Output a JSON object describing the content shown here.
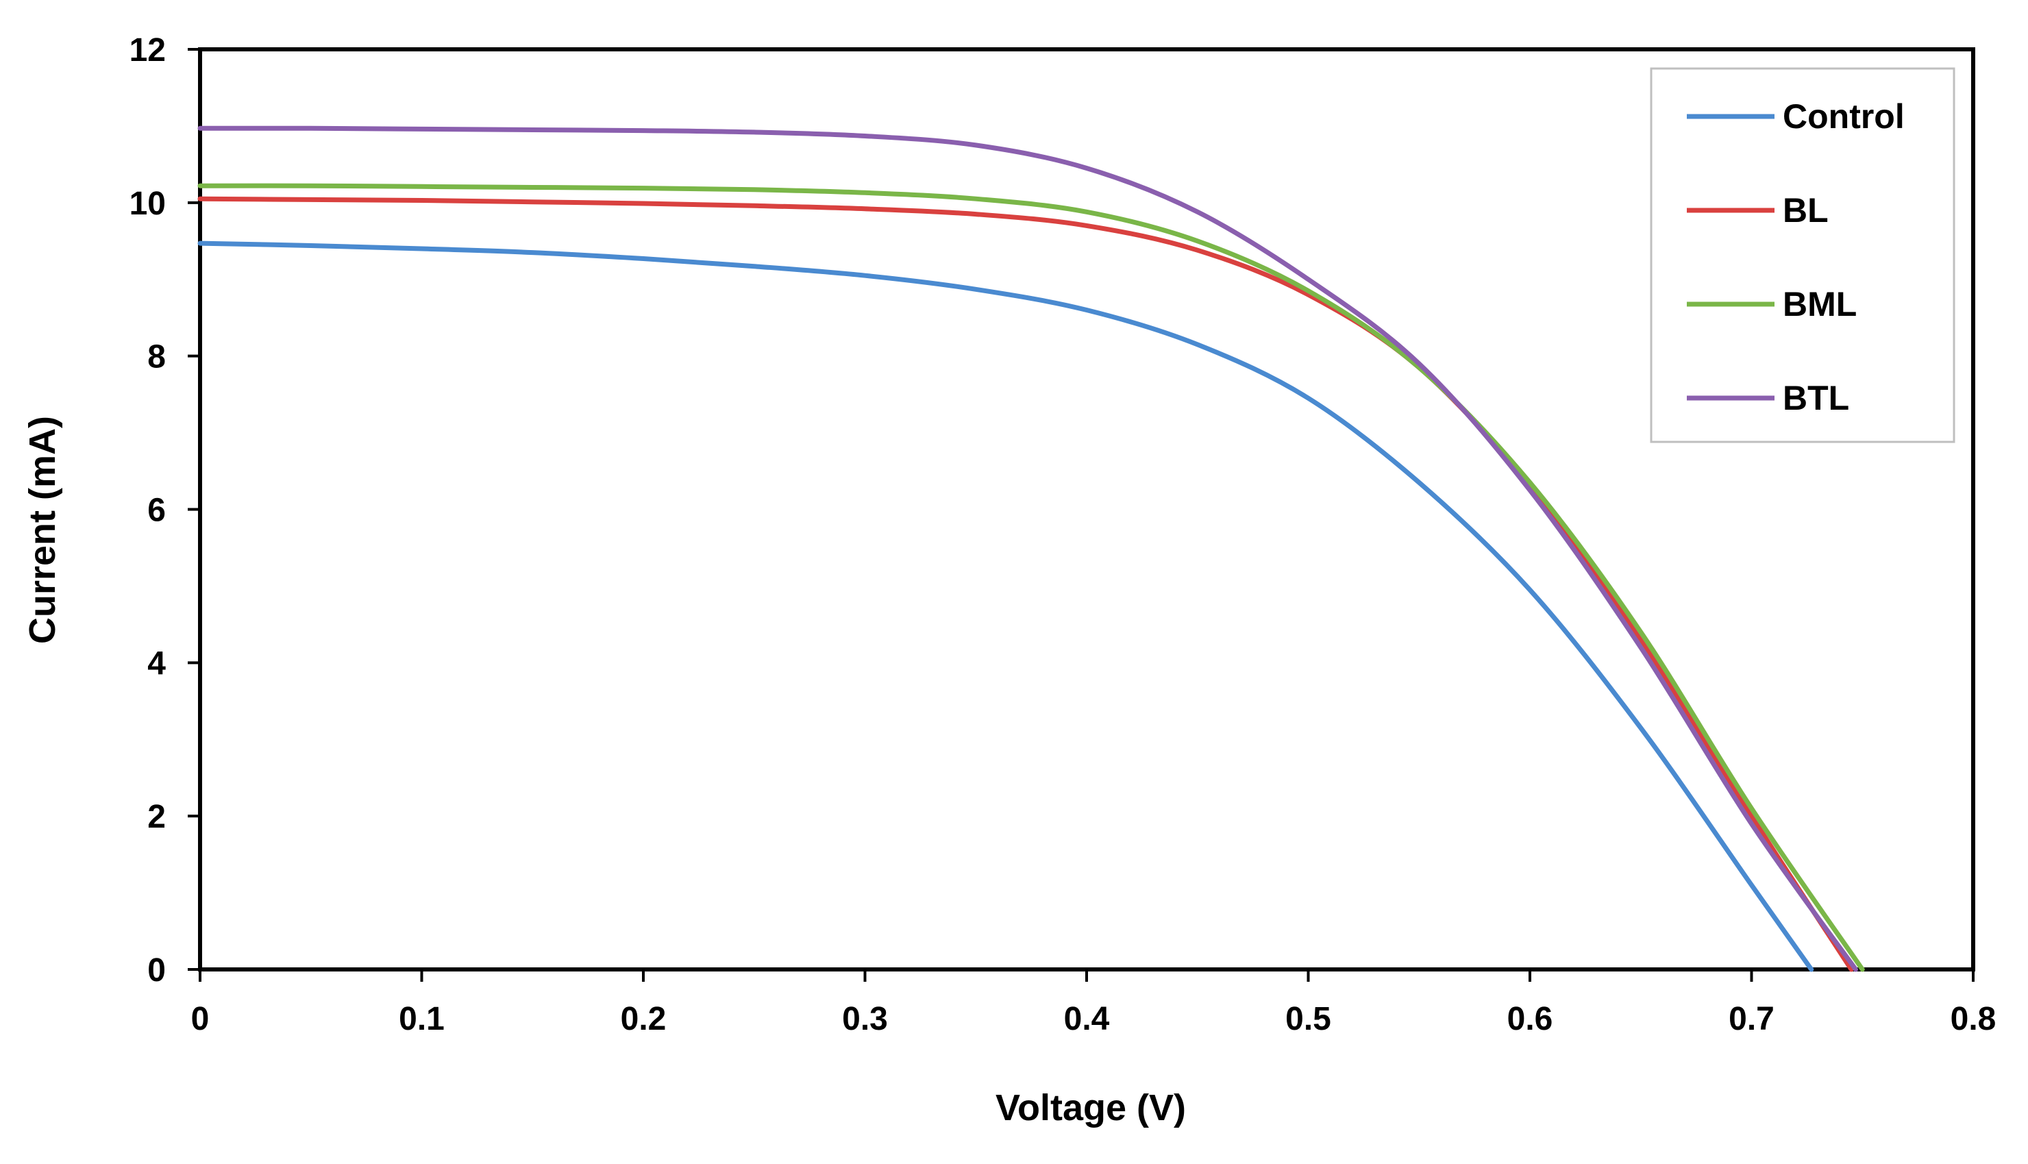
{
  "chart_data": {
    "type": "line",
    "title": "",
    "xlabel": "Voltage (V)",
    "ylabel": "Current (mA)",
    "xlim": [
      0,
      0.8
    ],
    "ylim": [
      0,
      12
    ],
    "x_ticks": [
      "0",
      "0.1",
      "0.2",
      "0.3",
      "0.4",
      "0.5",
      "0.6",
      "0.7",
      "0.8"
    ],
    "y_ticks": [
      "0",
      "2",
      "4",
      "6",
      "8",
      "10",
      "12"
    ],
    "x_tick_values": [
      0,
      0.1,
      0.2,
      0.3,
      0.4,
      0.5,
      0.6,
      0.7,
      0.8
    ],
    "y_tick_values": [
      0,
      2,
      4,
      6,
      8,
      10,
      12
    ],
    "grid": false,
    "legend_position": "top-right",
    "series": [
      {
        "name": "Control",
        "color": "#4a8ad0",
        "x": [
          0,
          0.05,
          0.1,
          0.15,
          0.2,
          0.25,
          0.3,
          0.35,
          0.4,
          0.45,
          0.5,
          0.55,
          0.6,
          0.65,
          0.7,
          0.727
        ],
        "y": [
          9.47,
          9.44,
          9.4,
          9.35,
          9.27,
          9.17,
          9.05,
          8.87,
          8.6,
          8.15,
          7.45,
          6.35,
          4.95,
          3.15,
          1.1,
          0.0
        ]
      },
      {
        "name": "BL",
        "color": "#d9413f",
        "x": [
          0,
          0.05,
          0.1,
          0.15,
          0.2,
          0.25,
          0.3,
          0.35,
          0.4,
          0.45,
          0.5,
          0.55,
          0.6,
          0.65,
          0.7,
          0.745
        ],
        "y": [
          10.05,
          10.04,
          10.03,
          10.01,
          9.99,
          9.96,
          9.92,
          9.85,
          9.7,
          9.38,
          8.8,
          7.85,
          6.3,
          4.3,
          2.0,
          0.0
        ]
      },
      {
        "name": "BML",
        "color": "#7ab648",
        "x": [
          0,
          0.05,
          0.1,
          0.15,
          0.2,
          0.25,
          0.3,
          0.35,
          0.4,
          0.45,
          0.5,
          0.55,
          0.6,
          0.65,
          0.7,
          0.75
        ],
        "y": [
          10.22,
          10.22,
          10.21,
          10.2,
          10.19,
          10.17,
          10.13,
          10.05,
          9.88,
          9.5,
          8.85,
          7.85,
          6.35,
          4.4,
          2.1,
          0.0
        ]
      },
      {
        "name": "BTL",
        "color": "#8a5fae",
        "x": [
          0,
          0.05,
          0.1,
          0.15,
          0.2,
          0.25,
          0.3,
          0.35,
          0.4,
          0.45,
          0.5,
          0.55,
          0.6,
          0.65,
          0.7,
          0.747
        ],
        "y": [
          10.97,
          10.97,
          10.96,
          10.95,
          10.94,
          10.92,
          10.87,
          10.75,
          10.45,
          9.88,
          9.0,
          7.9,
          6.25,
          4.2,
          1.9,
          0.0
        ]
      }
    ]
  }
}
